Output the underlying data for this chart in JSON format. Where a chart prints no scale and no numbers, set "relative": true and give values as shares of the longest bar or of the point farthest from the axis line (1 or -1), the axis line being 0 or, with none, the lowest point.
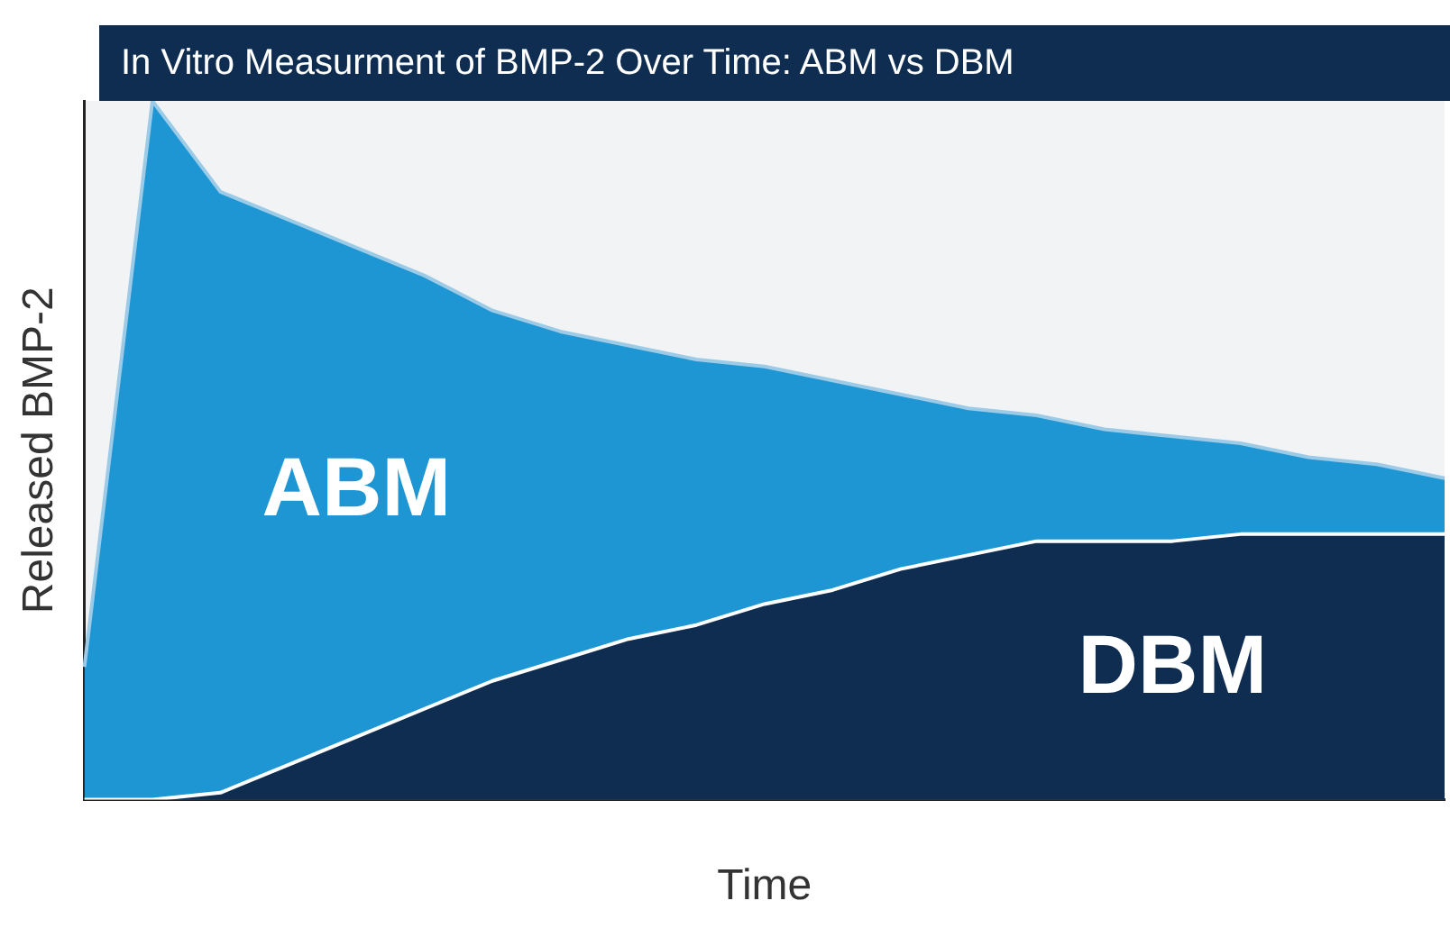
{
  "chart_data": {
    "type": "area",
    "title": "In Vitro Measurment of BMP-2 Over Time: ABM vs DBM",
    "xlabel": "Time",
    "ylabel": "Released BMP-2",
    "relative": true,
    "legend": false,
    "marker": "none",
    "categories": [
      null,
      null,
      null,
      null,
      null,
      null,
      null,
      null,
      null,
      null,
      null,
      null,
      null,
      null,
      null,
      null,
      null,
      null,
      null,
      null,
      null
    ],
    "series": [
      {
        "name": "ABM",
        "color": "#1e96d4",
        "values": [
          0.19,
          1,
          0.87,
          0.83,
          0.79,
          0.75,
          0.7,
          0.67,
          0.65,
          0.63,
          0.62,
          0.6,
          0.58,
          0.56,
          0.55,
          0.53,
          0.52,
          0.51,
          0.49,
          0.48,
          0.46
        ]
      },
      {
        "name": "DBM",
        "color": "#0f2d50",
        "values": [
          0,
          0,
          0.01,
          0.05,
          0.09,
          0.13,
          0.17,
          0.2,
          0.23,
          0.25,
          0.28,
          0.3,
          0.33,
          0.35,
          0.37,
          0.37,
          0.37,
          0.38,
          0.38,
          0.38,
          0.38
        ]
      }
    ]
  }
}
